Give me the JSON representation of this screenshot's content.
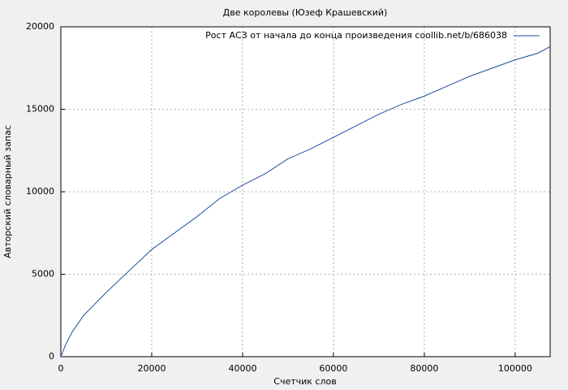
{
  "chart_data": {
    "type": "line",
    "title": "Две королевы (Юзеф Крашевский)",
    "x_label": "Счетчик слов",
    "y_label": "Авторский словарный запас",
    "x": [
      0,
      1000,
      2500,
      5000,
      7500,
      10000,
      15000,
      20000,
      25000,
      30000,
      35000,
      40000,
      45000,
      50000,
      55000,
      60000,
      65000,
      70000,
      75000,
      80000,
      85000,
      90000,
      95000,
      100000,
      105000,
      107700
    ],
    "series": [
      {
        "name": "Рост АСЗ от начала до конца произведения coollib.net/b/686038",
        "color": "#1f4e9c",
        "values": [
          0,
          700,
          1500,
          2500,
          3200,
          3900,
          5200,
          6500,
          7500,
          8500,
          9600,
          10400,
          11100,
          12000,
          12600,
          13300,
          14000,
          14700,
          15300,
          15800,
          16400,
          17000,
          17500,
          18000,
          18400,
          18800
        ]
      }
    ],
    "xlim": [
      0,
      107700
    ],
    "xticks": [
      0,
      20000,
      40000,
      60000,
      80000,
      100000
    ],
    "ylim": [
      0,
      20000
    ],
    "yticks": [
      0,
      5000,
      10000,
      15000,
      20000
    ],
    "grid": true,
    "legend": "top-right"
  }
}
